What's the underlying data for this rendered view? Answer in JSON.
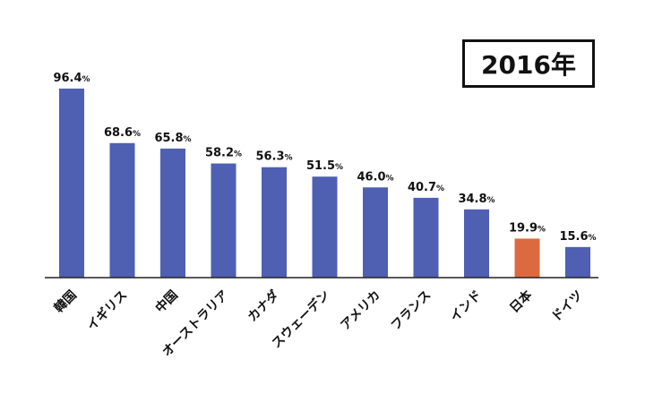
{
  "badge": {
    "text": "2016年"
  },
  "colors": {
    "bar": "#4f5fb1",
    "highlight": "#dd6940",
    "axis": "#222222",
    "text": "#111111"
  },
  "chart_data": {
    "type": "bar",
    "title": "",
    "xlabel": "",
    "ylabel": "",
    "ylim": [
      0,
      100
    ],
    "grid": false,
    "unit": "%",
    "highlight_category": "日本",
    "categories": [
      "韓国",
      "イギリス",
      "中国",
      "オーストラリア",
      "カナダ",
      "スウェーデン",
      "アメリカ",
      "フランス",
      "インド",
      "日本",
      "ドイツ"
    ],
    "values": [
      96.4,
      68.6,
      65.8,
      58.2,
      56.3,
      51.5,
      46.0,
      40.7,
      34.8,
      19.9,
      15.6
    ],
    "value_labels": [
      "96.4",
      "68.6",
      "65.8",
      "58.2",
      "56.3",
      "51.5",
      "46.0",
      "40.7",
      "34.8",
      "19.9",
      "15.6"
    ]
  }
}
